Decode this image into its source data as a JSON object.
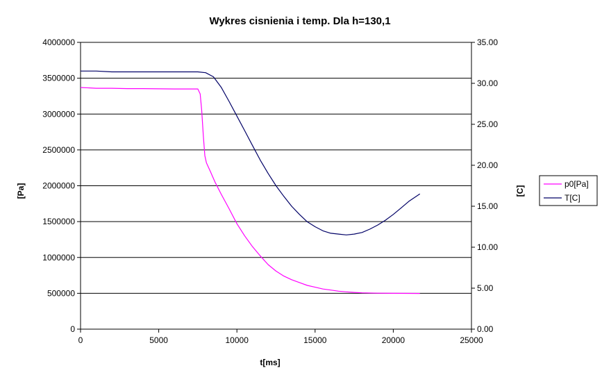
{
  "chart_data": {
    "type": "line",
    "title": "Wykres cisnienia i temp. Dla h=130,1",
    "xlabel": "t[ms]",
    "ylabel_left": "[Pa]",
    "ylabel_right": "[C]",
    "xlim": [
      0,
      25000
    ],
    "ylim_left": [
      0,
      4000000
    ],
    "ylim_right": [
      0,
      35
    ],
    "x_ticks": [
      "0",
      "5000",
      "10000",
      "15000",
      "20000",
      "25000"
    ],
    "y_left_ticks": [
      "0",
      "500000",
      "1000000",
      "1500000",
      "2000000",
      "2500000",
      "3000000",
      "3500000",
      "4000000"
    ],
    "y_right_ticks": [
      "0.00",
      "5.00",
      "10.00",
      "15.00",
      "20.00",
      "25.00",
      "30.00",
      "35.00"
    ],
    "grid": "horizontal",
    "legend_position": "right",
    "series": [
      {
        "name": "p0[Pa]",
        "axis": "left",
        "color": "#ff00ff",
        "x": [
          0,
          1000,
          2000,
          3000,
          4000,
          5000,
          6000,
          7000,
          7500,
          7650,
          7750,
          7850,
          7950,
          8050,
          8300,
          8600,
          9000,
          9500,
          10000,
          10500,
          11000,
          11500,
          12000,
          12500,
          13000,
          13500,
          14000,
          14500,
          15000,
          15500,
          16000,
          16500,
          17000,
          17500,
          18000,
          19000,
          20000,
          21000,
          21700
        ],
        "values": [
          3370000,
          3360000,
          3360000,
          3355000,
          3355000,
          3352000,
          3350000,
          3350000,
          3350000,
          3280000,
          3050000,
          2700000,
          2420000,
          2320000,
          2200000,
          2050000,
          1880000,
          1680000,
          1470000,
          1300000,
          1150000,
          1020000,
          900000,
          810000,
          740000,
          690000,
          650000,
          610000,
          585000,
          560000,
          545000,
          530000,
          520000,
          512000,
          507000,
          502000,
          500000,
          499000,
          498000
        ]
      },
      {
        "name": "T[C]",
        "axis": "right",
        "color": "#000066",
        "x": [
          0,
          1000,
          2000,
          3000,
          4000,
          5000,
          6000,
          7000,
          7500,
          8000,
          8500,
          9000,
          9500,
          10000,
          10500,
          11000,
          11500,
          12000,
          12500,
          13000,
          13500,
          14000,
          14500,
          15000,
          15500,
          16000,
          16500,
          17000,
          17500,
          18000,
          18500,
          19000,
          19500,
          20000,
          20500,
          21000,
          21700
        ],
        "values": [
          31.5,
          31.5,
          31.4,
          31.4,
          31.4,
          31.4,
          31.4,
          31.4,
          31.4,
          31.3,
          30.8,
          29.5,
          27.8,
          26.0,
          24.2,
          22.4,
          20.6,
          19.0,
          17.5,
          16.2,
          15.0,
          14.0,
          13.1,
          12.5,
          12.0,
          11.7,
          11.6,
          11.5,
          11.6,
          11.8,
          12.2,
          12.7,
          13.3,
          14.0,
          14.8,
          15.6,
          16.5
        ]
      }
    ]
  }
}
